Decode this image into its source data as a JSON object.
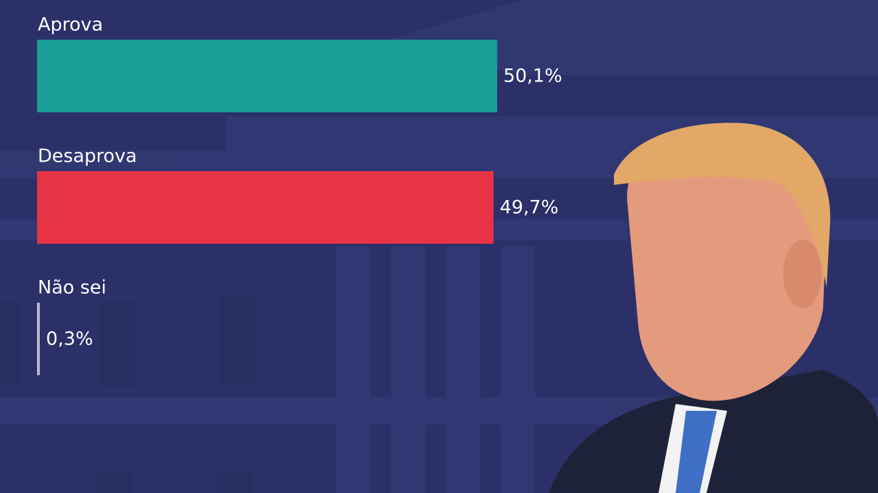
{
  "chart_data": {
    "type": "bar",
    "orientation": "horizontal",
    "categories": [
      "Aprova",
      "Desaprova",
      "Não sei"
    ],
    "values": [
      50.1,
      49.7,
      0.3
    ],
    "value_labels": [
      "50,1%",
      "49,7%",
      "0,3%"
    ],
    "colors": [
      "#1a9e96",
      "#e83347",
      "#b9bccb"
    ]
  }
}
